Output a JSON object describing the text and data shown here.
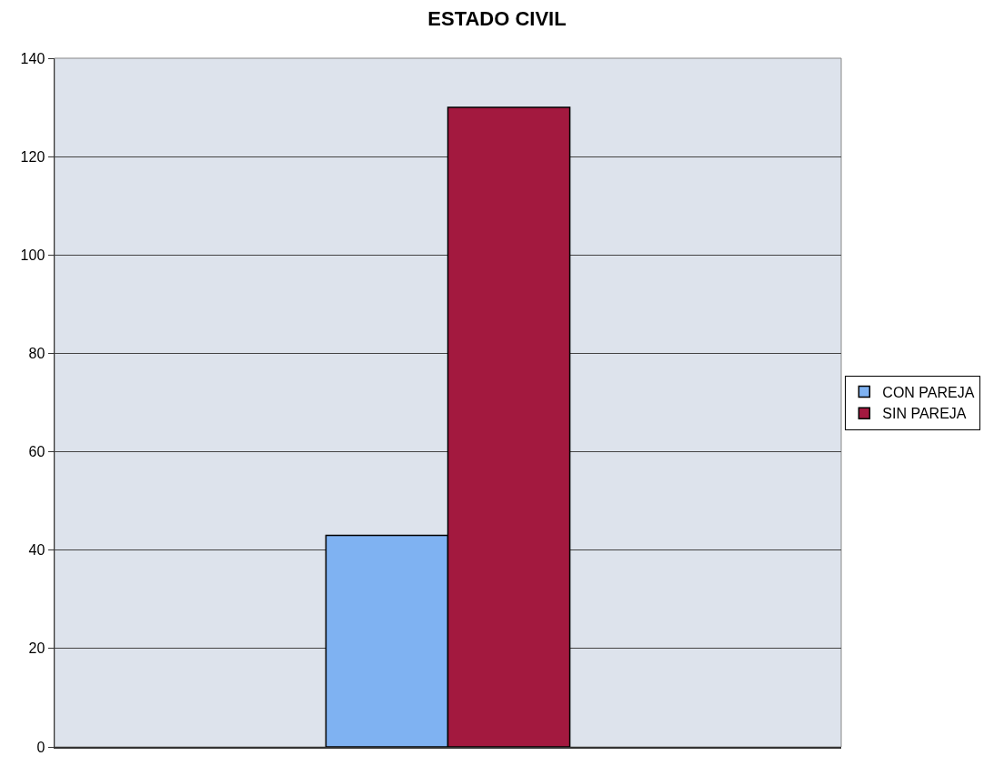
{
  "chart_data": {
    "type": "bar",
    "title": "ESTADO CIVIL",
    "categories": [
      null
    ],
    "series": [
      {
        "name": "CON PAREJA",
        "color": "#7fb2f2",
        "values": [
          43
        ]
      },
      {
        "name": "SIN PAREJA",
        "color": "#a3193f",
        "values": [
          130
        ]
      }
    ],
    "ylim": [
      0,
      140
    ],
    "yticks": [
      0,
      20,
      40,
      60,
      80,
      100,
      120,
      140
    ],
    "grid": "y",
    "legend": "right"
  }
}
